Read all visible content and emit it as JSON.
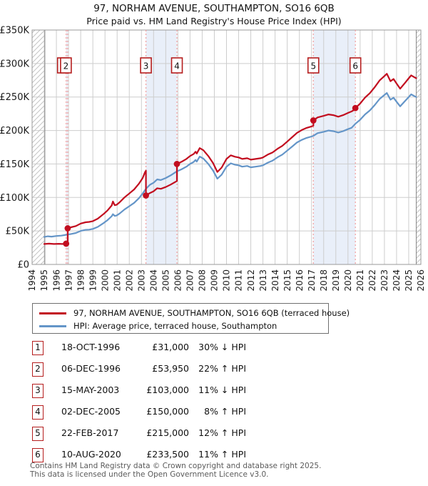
{
  "title": "97, NORHAM AVENUE, SOUTHAMPTON, SO16 6QB",
  "subtitle": "Price paid vs. HM Land Registry's House Price Index (HPI)",
  "legend": {
    "property_label": "97, NORHAM AVENUE, SOUTHAMPTON, SO16 6QB (terraced house)",
    "hpi_label": "HPI: Average price, terraced house, Southampton"
  },
  "colors": {
    "property": "#c20d1f",
    "hpi": "#6495c8",
    "dashed": "#f29e9e",
    "band": "#e9eff9",
    "grid": "#cdcdcd",
    "plot_border": "#999999",
    "hatch_line": "#c4c4c4",
    "hatch_edge": "#888888",
    "box_border": "#b51d1d",
    "axis_text": "#1a1a1a"
  },
  "chart_data": {
    "type": "line",
    "title": "97, NORHAM AVENUE, SOUTHAMPTON, SO16 6QB — Price paid vs. HPI",
    "x_range": [
      1994,
      2026
    ],
    "y_range_k": [
      0,
      350
    ],
    "grid": true,
    "x_ticks": [
      1994,
      1995,
      1996,
      1997,
      1998,
      1999,
      2000,
      2001,
      2002,
      2003,
      2004,
      2005,
      2006,
      2007,
      2008,
      2009,
      2010,
      2011,
      2012,
      2013,
      2014,
      2015,
      2016,
      2017,
      2018,
      2019,
      2020,
      2021,
      2022,
      2023,
      2024,
      2025,
      2026
    ],
    "y_ticks": [
      [
        0,
        "£0"
      ],
      [
        50,
        "£50K"
      ],
      [
        100,
        "£100K"
      ],
      [
        150,
        "£150K"
      ],
      [
        200,
        "£200K"
      ],
      [
        250,
        "£250K"
      ],
      [
        300,
        "£300K"
      ],
      [
        350,
        "£350K"
      ]
    ],
    "data_extent": [
      1995.05,
      2025.62
    ],
    "bands": [
      [
        1996.8,
        1996.93
      ],
      [
        2003.37,
        2005.92
      ],
      [
        2017.15,
        2020.61
      ]
    ],
    "series": [
      {
        "name": "HPI: Average price, terraced house, Southampton",
        "color_key": "hpi",
        "points": [
          [
            1995.0,
            41
          ],
          [
            1995.3,
            42
          ],
          [
            1995.6,
            41.5
          ],
          [
            1996.0,
            42.5
          ],
          [
            1996.4,
            43
          ],
          [
            1996.8,
            44.3
          ],
          [
            1997.2,
            45.5
          ],
          [
            1997.6,
            47
          ],
          [
            1998.0,
            50
          ],
          [
            1998.4,
            51.6
          ],
          [
            1998.7,
            52
          ],
          [
            1999.0,
            53
          ],
          [
            1999.4,
            56
          ],
          [
            1999.9,
            62
          ],
          [
            2000.2,
            66
          ],
          [
            2000.55,
            72
          ],
          [
            2000.65,
            75
          ],
          [
            2000.8,
            72.5
          ],
          [
            2000.95,
            73
          ],
          [
            2001.2,
            76
          ],
          [
            2001.6,
            82
          ],
          [
            2002.0,
            87
          ],
          [
            2002.4,
            92
          ],
          [
            2002.8,
            99
          ],
          [
            2003.1,
            106
          ],
          [
            2003.37,
            113
          ],
          [
            2003.7,
            119
          ],
          [
            2004.0,
            122
          ],
          [
            2004.3,
            127
          ],
          [
            2004.6,
            126
          ],
          [
            2005.0,
            129
          ],
          [
            2005.4,
            133
          ],
          [
            2005.92,
            139
          ],
          [
            2006.3,
            142
          ],
          [
            2006.7,
            146
          ],
          [
            2007.0,
            150
          ],
          [
            2007.3,
            153
          ],
          [
            2007.45,
            156
          ],
          [
            2007.55,
            153.5
          ],
          [
            2007.8,
            161
          ],
          [
            2008.1,
            158
          ],
          [
            2008.5,
            150
          ],
          [
            2008.9,
            140
          ],
          [
            2009.25,
            128
          ],
          [
            2009.6,
            134
          ],
          [
            2010.0,
            146
          ],
          [
            2010.35,
            151
          ],
          [
            2010.7,
            149
          ],
          [
            2011.0,
            148
          ],
          [
            2011.3,
            146
          ],
          [
            2011.7,
            147
          ],
          [
            2012.0,
            145
          ],
          [
            2012.4,
            146
          ],
          [
            2012.8,
            147
          ],
          [
            2013.0,
            148
          ],
          [
            2013.4,
            152
          ],
          [
            2013.8,
            155
          ],
          [
            2014.2,
            160
          ],
          [
            2014.6,
            164
          ],
          [
            2015.0,
            170
          ],
          [
            2015.4,
            176
          ],
          [
            2015.8,
            182
          ],
          [
            2016.2,
            186
          ],
          [
            2016.6,
            189
          ],
          [
            2017.0,
            191
          ],
          [
            2017.15,
            192
          ],
          [
            2017.5,
            196
          ],
          [
            2018.0,
            198
          ],
          [
            2018.4,
            200
          ],
          [
            2018.8,
            199
          ],
          [
            2019.2,
            197
          ],
          [
            2019.6,
            199
          ],
          [
            2020.0,
            202
          ],
          [
            2020.3,
            204
          ],
          [
            2020.61,
            210
          ],
          [
            2021.0,
            216
          ],
          [
            2021.4,
            224
          ],
          [
            2021.8,
            230
          ],
          [
            2022.2,
            238
          ],
          [
            2022.6,
            247
          ],
          [
            2023.0,
            253
          ],
          [
            2023.2,
            256
          ],
          [
            2023.5,
            246
          ],
          [
            2023.75,
            249
          ],
          [
            2024.0,
            243
          ],
          [
            2024.3,
            236
          ],
          [
            2024.7,
            244
          ],
          [
            2025.0,
            250
          ],
          [
            2025.2,
            254
          ],
          [
            2025.5,
            251
          ],
          [
            2025.62,
            250
          ]
        ]
      },
      {
        "name": "97, NORHAM AVENUE, SOUTHAMPTON, SO16 6QB (terraced house)",
        "color_key": "property",
        "points": [
          [
            1995.0,
            30.5
          ],
          [
            1995.4,
            31
          ],
          [
            1995.8,
            30.5
          ],
          [
            1996.2,
            30.8
          ],
          [
            1996.5,
            30.5
          ],
          [
            1996.8,
            31
          ],
          [
            1996.93,
            31
          ],
          [
            1996.93,
            53.95
          ],
          [
            1997.2,
            55.5
          ],
          [
            1997.6,
            57.3
          ],
          [
            1998.0,
            61
          ],
          [
            1998.4,
            63
          ],
          [
            1998.7,
            63.5
          ],
          [
            1999.0,
            64.7
          ],
          [
            1999.4,
            68.3
          ],
          [
            1999.9,
            75.6
          ],
          [
            2000.2,
            80.5
          ],
          [
            2000.55,
            88
          ],
          [
            2000.65,
            94
          ],
          [
            2000.8,
            88.5
          ],
          [
            2000.95,
            89
          ],
          [
            2001.2,
            92.7
          ],
          [
            2001.6,
            100
          ],
          [
            2002.0,
            106
          ],
          [
            2002.4,
            112
          ],
          [
            2002.8,
            120.8
          ],
          [
            2003.1,
            129
          ],
          [
            2003.3,
            138
          ],
          [
            2003.37,
            140
          ],
          [
            2003.37,
            103
          ],
          [
            2003.7,
            106.6
          ],
          [
            2004.0,
            109.3
          ],
          [
            2004.3,
            113.8
          ],
          [
            2004.6,
            112.9
          ],
          [
            2005.0,
            115.6
          ],
          [
            2005.4,
            119.2
          ],
          [
            2005.92,
            124.5
          ],
          [
            2005.92,
            150
          ],
          [
            2006.3,
            153.2
          ],
          [
            2006.7,
            157.5
          ],
          [
            2007.0,
            161.9
          ],
          [
            2007.3,
            165
          ],
          [
            2007.45,
            168.3
          ],
          [
            2007.55,
            165.6
          ],
          [
            2007.8,
            173.7
          ],
          [
            2008.1,
            170.5
          ],
          [
            2008.5,
            161.9
          ],
          [
            2008.9,
            151.1
          ],
          [
            2009.25,
            138.1
          ],
          [
            2009.6,
            144.6
          ],
          [
            2010.0,
            157.5
          ],
          [
            2010.35,
            162.9
          ],
          [
            2010.7,
            160.8
          ],
          [
            2011.0,
            159.7
          ],
          [
            2011.3,
            157.5
          ],
          [
            2011.7,
            158.6
          ],
          [
            2012.0,
            156.4
          ],
          [
            2012.4,
            157.5
          ],
          [
            2012.8,
            158.6
          ],
          [
            2013.0,
            159.7
          ],
          [
            2013.4,
            164
          ],
          [
            2013.8,
            167.2
          ],
          [
            2014.2,
            172.6
          ],
          [
            2014.6,
            177
          ],
          [
            2015.0,
            183.4
          ],
          [
            2015.4,
            189.9
          ],
          [
            2015.8,
            196.4
          ],
          [
            2016.2,
            200.7
          ],
          [
            2016.6,
            203.9
          ],
          [
            2017.0,
            206.1
          ],
          [
            2017.15,
            207.2
          ],
          [
            2017.15,
            215
          ],
          [
            2017.5,
            219.5
          ],
          [
            2018.0,
            221.8
          ],
          [
            2018.4,
            224
          ],
          [
            2018.8,
            222.9
          ],
          [
            2019.2,
            220.6
          ],
          [
            2019.6,
            222.9
          ],
          [
            2020.0,
            226.2
          ],
          [
            2020.3,
            228.5
          ],
          [
            2020.61,
            232
          ],
          [
            2020.61,
            233.5
          ],
          [
            2021.0,
            240.2
          ],
          [
            2021.4,
            249.1
          ],
          [
            2021.8,
            255.8
          ],
          [
            2022.2,
            264.6
          ],
          [
            2022.6,
            274.7
          ],
          [
            2023.0,
            281.3
          ],
          [
            2023.2,
            284.7
          ],
          [
            2023.5,
            273.6
          ],
          [
            2023.75,
            276.9
          ],
          [
            2024.0,
            270.2
          ],
          [
            2024.3,
            262.4
          ],
          [
            2024.7,
            271.3
          ],
          [
            2025.0,
            278
          ],
          [
            2025.2,
            282.4
          ],
          [
            2025.5,
            279.1
          ],
          [
            2025.62,
            278
          ]
        ]
      }
    ],
    "transactions": [
      {
        "n": "1",
        "year": 1996.8,
        "price_k": 31
      },
      {
        "n": "2",
        "year": 1996.93,
        "price_k": 53.95
      },
      {
        "n": "3",
        "year": 2003.37,
        "price_k": 103
      },
      {
        "n": "4",
        "year": 2005.92,
        "price_k": 150
      },
      {
        "n": "5",
        "year": 2017.15,
        "price_k": 215
      },
      {
        "n": "6",
        "year": 2020.61,
        "price_k": 233.5
      }
    ]
  },
  "table": {
    "rows": [
      {
        "n": "1",
        "date": "18-OCT-1996",
        "price": "£31,000",
        "hpi": "30% ↓ HPI"
      },
      {
        "n": "2",
        "date": "06-DEC-1996",
        "price": "£53,950",
        "hpi": "22% ↑ HPI"
      },
      {
        "n": "3",
        "date": "15-MAY-2003",
        "price": "£103,000",
        "hpi": "11% ↓ HPI"
      },
      {
        "n": "4",
        "date": "02-DEC-2005",
        "price": "£150,000",
        "hpi": "8% ↑ HPI"
      },
      {
        "n": "5",
        "date": "22-FEB-2017",
        "price": "£215,000",
        "hpi": "12% ↑ HPI"
      },
      {
        "n": "6",
        "date": "10-AUG-2020",
        "price": "£233,500",
        "hpi": "11% ↑ HPI"
      }
    ]
  },
  "footer": {
    "line1": "Contains HM Land Registry data © Crown copyright and database right 2025.",
    "line2": "This data is licensed under the Open Government Licence v3.0."
  }
}
